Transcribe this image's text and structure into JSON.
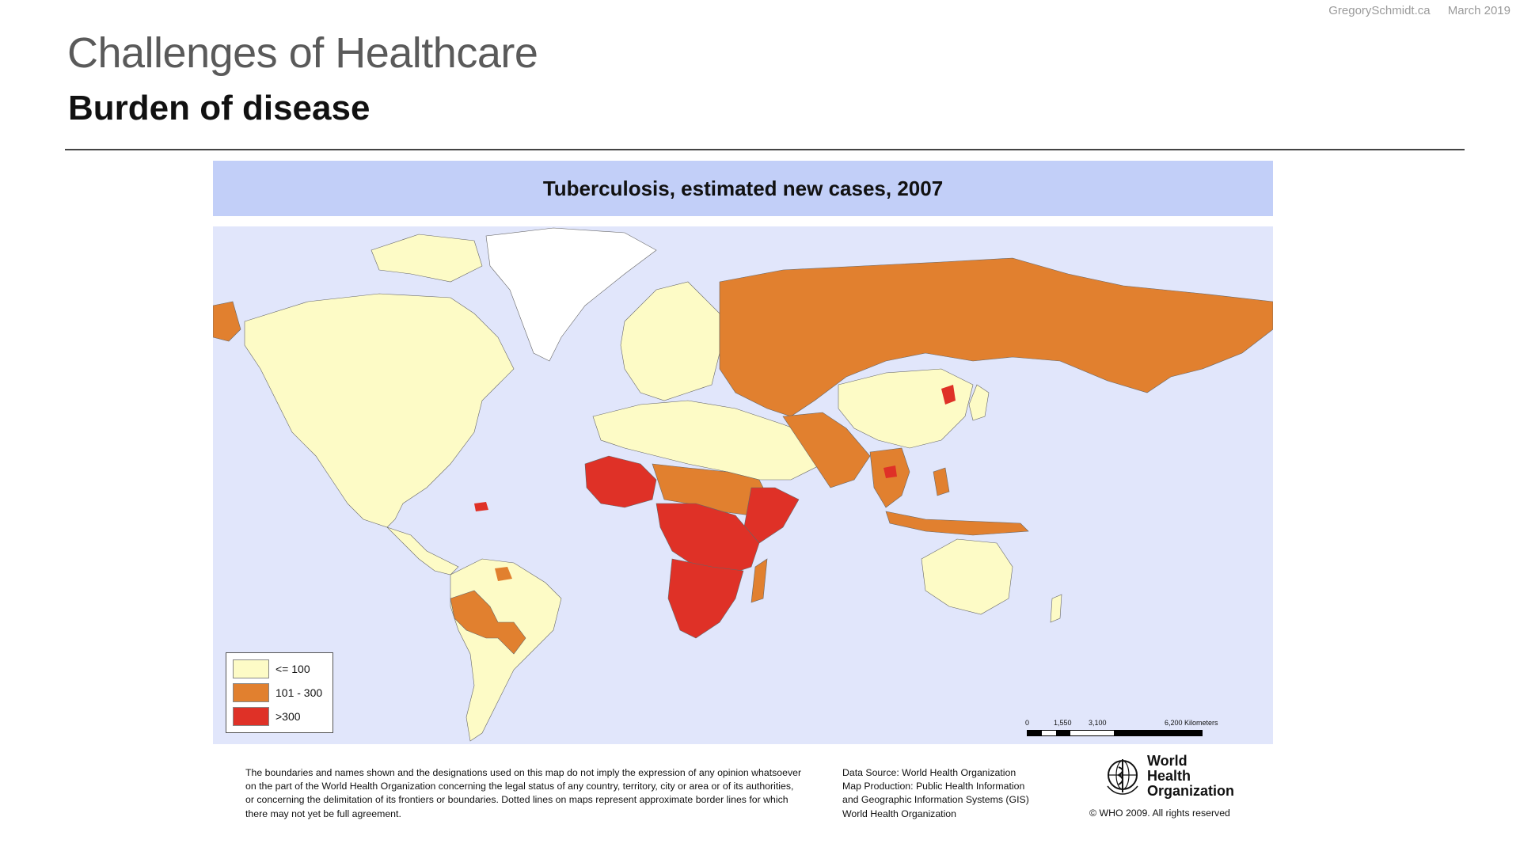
{
  "header": {
    "site": "GregorySchmidt.ca",
    "date": "March 2019",
    "title": "Challenges of Healthcare",
    "subtitle": "Burden of disease"
  },
  "map": {
    "title": "Tuberculosis, estimated new cases, 2007",
    "legend": [
      {
        "label": "<= 100",
        "color": "#fdfbc6"
      },
      {
        "label": "101 - 300",
        "color": "#e1802f"
      },
      {
        "label": ">300",
        "color": "#df3127"
      }
    ],
    "no_data_color": "#ffffff",
    "ocean_color": "#e1e6fb",
    "scale": {
      "ticks": [
        "0",
        "1,550",
        "3,100",
        "6,200 Kilometers"
      ]
    }
  },
  "footer": {
    "disclaimer_lines": [
      "The boundaries and names shown and the designations used on this map do not imply the expression of any opinion whatsoever",
      "on the part of the World Health Organization concerning the legal status of any country, territory, city or area or of its authorities,",
      "or concerning the delimitation of its frontiers or boundaries.  Dotted lines on maps represent approximate border lines for which",
      "there may not yet be full agreement."
    ],
    "source_lines": [
      "Data Source: World Health Organization",
      "Map Production: Public Health Information",
      "and Geographic Information Systems (GIS)",
      "World Health Organization"
    ],
    "org_name": "World Health Organization",
    "copyright": "© WHO 2009. All rights reserved"
  }
}
